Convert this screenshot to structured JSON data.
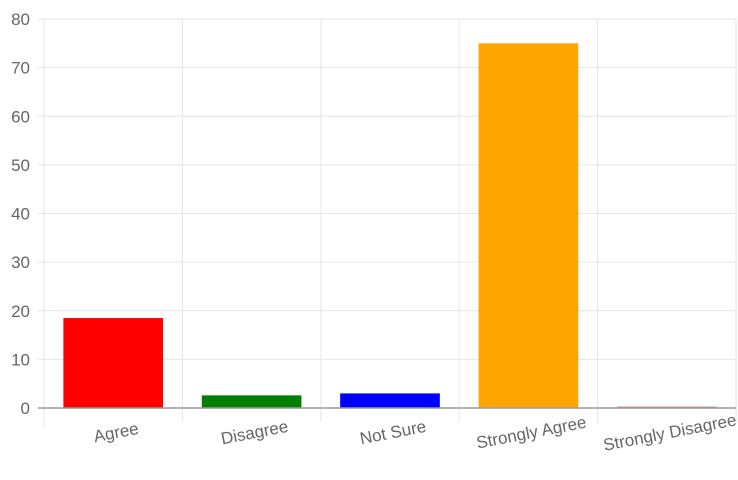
{
  "chart_data": {
    "type": "bar",
    "categories": [
      "Agree",
      "Disagree",
      "Not Sure",
      "Strongly Agree",
      "Strongly Disagree"
    ],
    "values": [
      18.5,
      2.6,
      3.0,
      75.0,
      0.3
    ],
    "colors": [
      "#ff0000",
      "#008000",
      "#0000ff",
      "#ffa500",
      "#d98d8d"
    ],
    "yticks": [
      0,
      10,
      20,
      30,
      40,
      50,
      60,
      70,
      80
    ],
    "ylim": [
      0,
      80
    ],
    "grid": true,
    "legend": "none"
  }
}
